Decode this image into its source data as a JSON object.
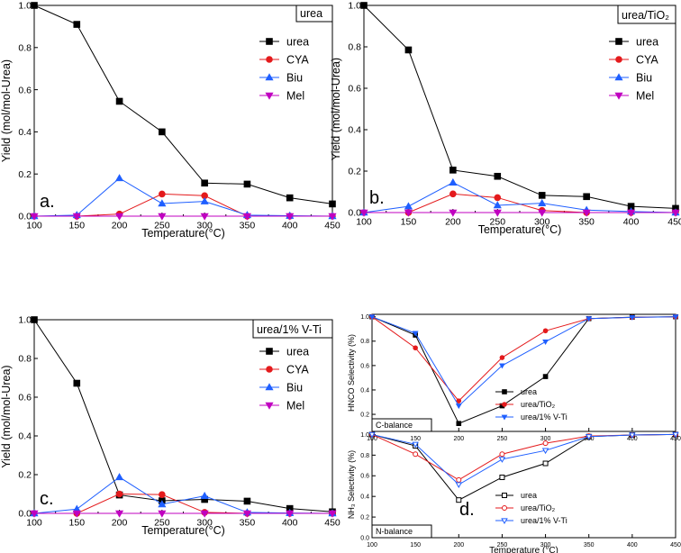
{
  "colors": {
    "urea": "#000000",
    "cya": "#e41a1c",
    "biu": "#1f5fff",
    "mel": "#c000c0"
  },
  "chart_data": [
    {
      "id": "a",
      "type": "line",
      "panel_label": "a.",
      "title": "urea",
      "xlabel": "Temperature(°C)",
      "ylabel": "Yield (mol/mol-Urea)",
      "xlim": [
        100,
        450
      ],
      "ylim": [
        0,
        1.0
      ],
      "xticks": [
        100,
        150,
        200,
        250,
        300,
        350,
        400,
        450
      ],
      "yticks": [
        0.0,
        0.2,
        0.4,
        0.6,
        0.8,
        1.0
      ],
      "ytick_labels": [
        "0.0",
        "0.2",
        "0.4",
        "0.6",
        "0.8",
        "1.0"
      ],
      "x": [
        100,
        150,
        200,
        250,
        300,
        350,
        400,
        450
      ],
      "series": [
        {
          "name": "urea",
          "color": "#000000",
          "marker": "square",
          "values": [
            1.0,
            0.91,
            0.545,
            0.4,
            0.157,
            0.152,
            0.087,
            0.058
          ]
        },
        {
          "name": "CYA",
          "color": "#e41a1c",
          "marker": "circle",
          "values": [
            0,
            0,
            0.01,
            0.105,
            0.097,
            0,
            0,
            0
          ]
        },
        {
          "name": "Biu",
          "color": "#1f5fff",
          "marker": "triangle-up",
          "values": [
            0,
            0.005,
            0.18,
            0.06,
            0.07,
            0.005,
            0.002,
            0
          ]
        },
        {
          "name": "Mel",
          "color": "#c000c0",
          "marker": "triangle-down",
          "values": [
            0,
            0,
            0,
            0,
            0,
            0,
            0,
            0
          ]
        }
      ]
    },
    {
      "id": "b",
      "type": "line",
      "panel_label": "b.",
      "title": "urea/TiO₂",
      "xlabel": "Temperature(°C)",
      "ylabel": "Yield (mol/mol-Urea)",
      "xlim": [
        100,
        450
      ],
      "ylim": [
        0,
        1.0
      ],
      "xticks": [
        100,
        150,
        200,
        250,
        300,
        350,
        400,
        450
      ],
      "yticks": [
        0.0,
        0.2,
        0.4,
        0.6,
        0.8,
        1.0
      ],
      "ytick_labels": [
        "0.0",
        "0.2",
        "0.4",
        "0.6",
        "0.8",
        "1.0"
      ],
      "x": [
        100,
        150,
        200,
        250,
        300,
        350,
        400,
        450
      ],
      "series": [
        {
          "name": "urea",
          "color": "#000000",
          "marker": "square",
          "values": [
            1.0,
            0.785,
            0.205,
            0.175,
            0.083,
            0.077,
            0.03,
            0.02
          ]
        },
        {
          "name": "CYA",
          "color": "#e41a1c",
          "marker": "circle",
          "values": [
            0,
            0,
            0.09,
            0.072,
            0.01,
            0,
            0,
            0
          ]
        },
        {
          "name": "Biu",
          "color": "#1f5fff",
          "marker": "triangle-up",
          "values": [
            0,
            0.03,
            0.145,
            0.035,
            0.045,
            0.012,
            0.005,
            0
          ]
        },
        {
          "name": "Mel",
          "color": "#c000c0",
          "marker": "triangle-down",
          "values": [
            0,
            0,
            0,
            0,
            0,
            0,
            0,
            0
          ]
        }
      ]
    },
    {
      "id": "c",
      "type": "line",
      "panel_label": "c.",
      "title": "urea/1% V-Ti",
      "xlabel": "Temperature(°C)",
      "ylabel": "Yield (mol/mol-Urea)",
      "xlim": [
        100,
        450
      ],
      "ylim": [
        0,
        1.0
      ],
      "xticks": [
        100,
        150,
        200,
        250,
        300,
        350,
        400,
        450
      ],
      "yticks": [
        0.0,
        0.2,
        0.4,
        0.6,
        0.8,
        1.0
      ],
      "ytick_labels": [
        "0.0",
        "0.2",
        "0.4",
        "0.6",
        "0.8",
        "1.0"
      ],
      "x": [
        100,
        150,
        200,
        250,
        300,
        350,
        400,
        450
      ],
      "series": [
        {
          "name": "urea",
          "color": "#000000",
          "marker": "square",
          "values": [
            1.0,
            0.672,
            0.095,
            0.065,
            0.072,
            0.063,
            0.025,
            0.008
          ]
        },
        {
          "name": "CYA",
          "color": "#e41a1c",
          "marker": "circle",
          "values": [
            0,
            0,
            0.1,
            0.097,
            0.005,
            0,
            0,
            0
          ]
        },
        {
          "name": "Biu",
          "color": "#1f5fff",
          "marker": "triangle-up",
          "values": [
            0,
            0.022,
            0.187,
            0.047,
            0.09,
            0.005,
            0.002,
            0
          ]
        },
        {
          "name": "Mel",
          "color": "#c000c0",
          "marker": "triangle-down",
          "values": [
            0,
            0,
            0,
            0,
            0,
            0,
            0,
            0
          ]
        }
      ]
    },
    {
      "id": "d-top",
      "type": "line",
      "panel_label": "",
      "title": "C-balance",
      "xlabel": "",
      "ylabel": "HNCO Selectivity (%)",
      "xlim": [
        100,
        450
      ],
      "ylim": [
        0.06,
        1.02
      ],
      "xticks": [
        100,
        150,
        200,
        250,
        300,
        350,
        400,
        450
      ],
      "yticks": [
        0.2,
        0.4,
        0.6,
        0.8,
        1.0
      ],
      "ytick_labels": [
        "0.2",
        "0.4",
        "0.6",
        "0.8",
        "1.0"
      ],
      "x": [
        100,
        150,
        200,
        250,
        300,
        350,
        400,
        450
      ],
      "series": [
        {
          "name": "urea",
          "color": "#000000",
          "marker": "square",
          "values": [
            1.0,
            0.85,
            0.125,
            0.27,
            0.51,
            0.985,
            0.997,
            1.0
          ]
        },
        {
          "name": "urea/TiO₂",
          "color": "#e41a1c",
          "marker": "circle",
          "values": [
            1.0,
            0.745,
            0.31,
            0.665,
            0.885,
            0.985,
            0.995,
            1.0
          ]
        },
        {
          "name": "urea/1% V-Ti",
          "color": "#1f5fff",
          "marker": "triangle-down",
          "values": [
            1.0,
            0.865,
            0.27,
            0.6,
            0.795,
            0.985,
            0.995,
            1.0
          ]
        }
      ]
    },
    {
      "id": "d-bottom",
      "type": "line",
      "panel_label": "d.",
      "title": "N-balance",
      "xlabel": "Temperature (°C)",
      "ylabel": "NH₃ Selectivity (%)",
      "xlim": [
        100,
        450
      ],
      "ylim": [
        0.0,
        1.03
      ],
      "xticks": [
        100,
        150,
        200,
        250,
        300,
        350,
        400,
        450
      ],
      "yticks": [
        0.0,
        0.2,
        0.4,
        0.6,
        0.8,
        1.0
      ],
      "ytick_labels": [
        "0.0",
        "0.2",
        "0.4",
        "0.6",
        "0.8",
        "1.0"
      ],
      "x": [
        100,
        150,
        200,
        250,
        300,
        350,
        400,
        450
      ],
      "series": [
        {
          "name": "urea",
          "color": "#000000",
          "marker": "square-open",
          "values": [
            1.0,
            0.89,
            0.365,
            0.585,
            0.72,
            0.98,
            0.995,
            1.0
          ]
        },
        {
          "name": "urea/TiO₂",
          "color": "#e41a1c",
          "marker": "circle-open",
          "values": [
            1.0,
            0.81,
            0.56,
            0.81,
            0.915,
            0.985,
            0.995,
            1.0
          ]
        },
        {
          "name": "urea/1% V-Ti",
          "color": "#1f5fff",
          "marker": "triangle-down-open",
          "values": [
            1.0,
            0.905,
            0.515,
            0.76,
            0.845,
            0.98,
            0.995,
            1.0
          ]
        }
      ]
    }
  ]
}
